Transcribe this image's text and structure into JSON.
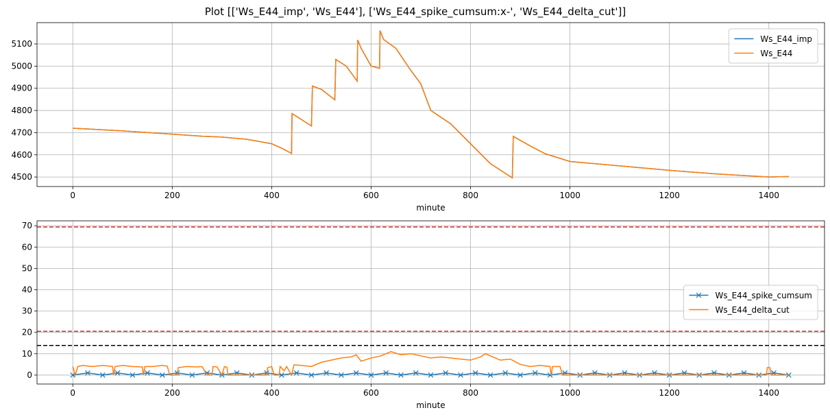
{
  "title": "Plot [['Ws_E44_imp', 'Ws_E44'], ['Ws_E44_spike_cumsum:x-', 'Ws_E44_delta_cut']]",
  "chart_data": [
    {
      "type": "line",
      "xlabel": "minute",
      "xlim": [
        -72,
        1512
      ],
      "xticks": [
        0,
        200,
        400,
        600,
        800,
        1000,
        1200,
        1400
      ],
      "ylim": [
        4457,
        5196
      ],
      "yticks": [
        4500,
        4600,
        4700,
        4800,
        4900,
        5000,
        5100
      ],
      "grid": true,
      "legend": "upper right",
      "series": [
        {
          "name": "Ws_E44_imp",
          "color": "#1f77b4",
          "x": [
            0,
            100,
            200,
            260,
            300,
            350,
            400,
            420,
            440,
            441,
            480,
            482,
            500,
            527,
            529,
            550,
            572,
            573,
            580,
            600,
            617,
            618,
            625,
            650,
            680,
            700,
            720,
            760,
            800,
            840,
            884,
            886,
            920,
            950,
            1000,
            1100,
            1200,
            1300,
            1400,
            1440
          ],
          "values": [
            4720,
            4708,
            4693,
            4684,
            4680,
            4670,
            4650,
            4630,
            4606,
            4786,
            4730,
            4910,
            4895,
            4848,
            5030,
            5000,
            4932,
            5118,
            5080,
            5000,
            4990,
            5160,
            5120,
            5080,
            4980,
            4920,
            4800,
            4740,
            4650,
            4560,
            4496,
            4683,
            4640,
            4605,
            4570,
            4550,
            4530,
            4513,
            4500,
            4502
          ]
        },
        {
          "name": "Ws_E44",
          "color": "#ff7f0e",
          "x": [
            0,
            100,
            200,
            260,
            300,
            350,
            400,
            420,
            440,
            441,
            480,
            482,
            500,
            527,
            529,
            550,
            572,
            573,
            580,
            600,
            617,
            618,
            625,
            650,
            680,
            700,
            720,
            760,
            800,
            840,
            884,
            886,
            920,
            950,
            1000,
            1100,
            1200,
            1300,
            1400,
            1440
          ],
          "values": [
            4720,
            4708,
            4693,
            4684,
            4680,
            4670,
            4650,
            4630,
            4606,
            4786,
            4730,
            4910,
            4895,
            4848,
            5030,
            5000,
            4932,
            5118,
            5080,
            5000,
            4990,
            5160,
            5120,
            5080,
            4980,
            4920,
            4800,
            4740,
            4650,
            4560,
            4496,
            4683,
            4640,
            4605,
            4570,
            4550,
            4530,
            4513,
            4500,
            4502
          ]
        }
      ]
    },
    {
      "type": "line",
      "xlabel": "minute",
      "xlim": [
        -72,
        1512
      ],
      "xticks": [
        0,
        200,
        400,
        600,
        800,
        1000,
        1200,
        1400
      ],
      "ylim": [
        -4.2,
        72.3
      ],
      "yticks": [
        0,
        10,
        20,
        30,
        40,
        50,
        60,
        70
      ],
      "grid": true,
      "legend": "center right",
      "hlines": [
        {
          "value": 69.4,
          "color": "#d62728"
        },
        {
          "value": 20.5,
          "color": "#d62728"
        },
        {
          "value": 13.9,
          "color": "#000000"
        }
      ],
      "series": [
        {
          "name": "Ws_E44_spike_cumsum",
          "color": "#1f77b4",
          "marker": "x",
          "x": [
            0,
            30,
            60,
            90,
            120,
            150,
            180,
            210,
            240,
            270,
            300,
            330,
            360,
            390,
            420,
            450,
            480,
            510,
            540,
            570,
            600,
            630,
            660,
            690,
            720,
            750,
            780,
            810,
            840,
            870,
            900,
            930,
            960,
            990,
            1020,
            1050,
            1080,
            1110,
            1140,
            1170,
            1200,
            1230,
            1260,
            1290,
            1320,
            1350,
            1380,
            1410,
            1440
          ],
          "values": [
            0,
            1,
            0,
            1,
            0,
            1,
            0,
            1,
            0,
            1,
            0,
            1,
            0,
            1,
            0,
            1,
            0,
            1,
            0,
            1,
            0,
            1,
            0,
            1,
            0,
            1,
            0,
            1,
            0,
            1,
            0,
            1,
            0,
            1,
            0,
            1,
            0,
            1,
            0,
            1,
            0,
            1,
            0,
            1,
            0,
            1,
            0,
            1,
            0
          ]
        },
        {
          "name": "Ws_E44_delta_cut",
          "color": "#ff7f0e",
          "x": [
            0,
            5,
            10,
            20,
            40,
            60,
            80,
            82,
            85,
            100,
            120,
            140,
            142,
            145,
            160,
            180,
            190,
            195,
            210,
            212,
            230,
            250,
            260,
            270,
            280,
            282,
            290,
            300,
            305,
            310,
            312,
            390,
            392,
            400,
            405,
            415,
            417,
            425,
            430,
            440,
            445,
            460,
            480,
            500,
            520,
            540,
            560,
            570,
            580,
            600,
            620,
            640,
            660,
            680,
            700,
            720,
            740,
            760,
            780,
            800,
            820,
            830,
            840,
            860,
            880,
            900,
            920,
            940,
            960,
            962,
            965,
            980,
            985,
            1395,
            1397,
            1402,
            1405,
            1440
          ],
          "values": [
            4,
            0,
            4,
            4.5,
            4,
            4.5,
            4,
            0,
            4,
            4.5,
            4,
            3.8,
            0,
            4,
            4,
            4.5,
            4.2,
            0,
            0,
            3.5,
            4,
            3.8,
            4,
            0,
            0,
            4,
            3.8,
            0,
            4,
            3.7,
            0,
            0,
            3.5,
            4,
            0,
            0,
            4,
            2,
            4,
            0,
            4.8,
            4.5,
            4,
            6,
            7,
            8,
            8.5,
            9.5,
            6.5,
            8,
            9,
            11,
            9.5,
            10,
            9,
            8,
            8.5,
            8,
            7.5,
            7,
            8.5,
            10,
            9,
            7,
            7.5,
            5,
            4,
            4.5,
            4,
            0,
            4,
            4,
            0,
            0,
            3.5,
            3.5,
            0,
            0
          ]
        }
      ]
    }
  ]
}
